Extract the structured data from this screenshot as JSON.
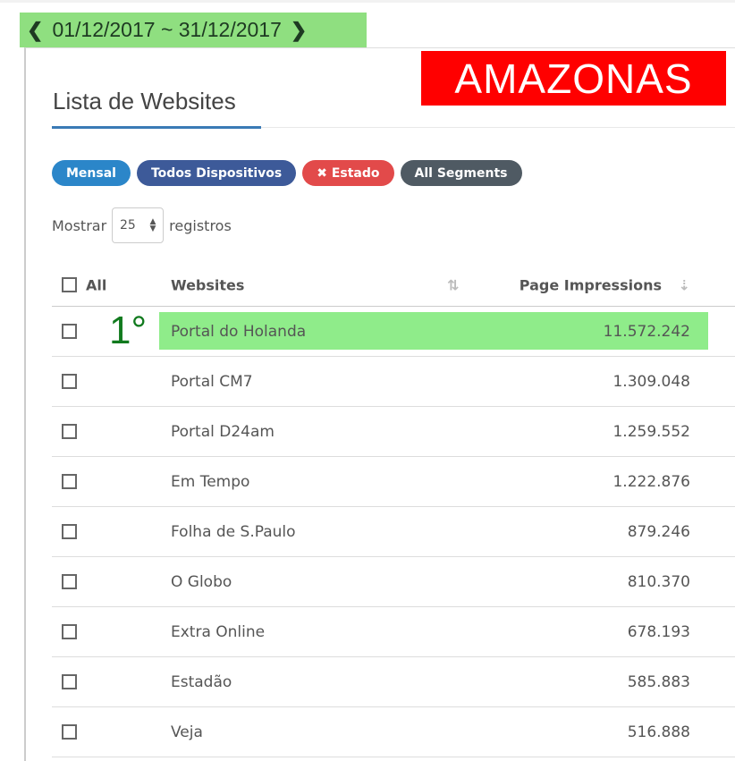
{
  "date_range": {
    "label": "01/12/2017 ~ 31/12/2017",
    "prev_icon": "chevron-left-icon",
    "next_icon": "chevron-right-icon"
  },
  "badge": "AMAZONAS",
  "title": "Lista de Websites",
  "filters": [
    {
      "label": "Mensal",
      "color": "#2b86c9"
    },
    {
      "label": "Todos Dispositivos",
      "color": "#3d5a99"
    },
    {
      "label": "✖ Estado",
      "color": "#e24a4a"
    },
    {
      "label": "All Segments",
      "color": "#4f5a63"
    }
  ],
  "show": {
    "prefix": "Mostrar",
    "value": "25",
    "suffix": "registros"
  },
  "table": {
    "headers": {
      "all": "All",
      "websites": "Websites",
      "impressions": "Page Impressions"
    },
    "rank_label": "1°",
    "rows": [
      {
        "site": "Portal do Holanda",
        "value": "11.572.242"
      },
      {
        "site": "Portal CM7",
        "value": "1.309.048"
      },
      {
        "site": "Portal D24am",
        "value": "1.259.552"
      },
      {
        "site": "Em Tempo",
        "value": "1.222.876"
      },
      {
        "site": "Folha de S.Paulo",
        "value": "879.246"
      },
      {
        "site": "O Globo",
        "value": "810.370"
      },
      {
        "site": "Extra Online",
        "value": "678.193"
      },
      {
        "site": "Estadão",
        "value": "585.883"
      },
      {
        "site": "Veja",
        "value": "516.888"
      }
    ]
  }
}
